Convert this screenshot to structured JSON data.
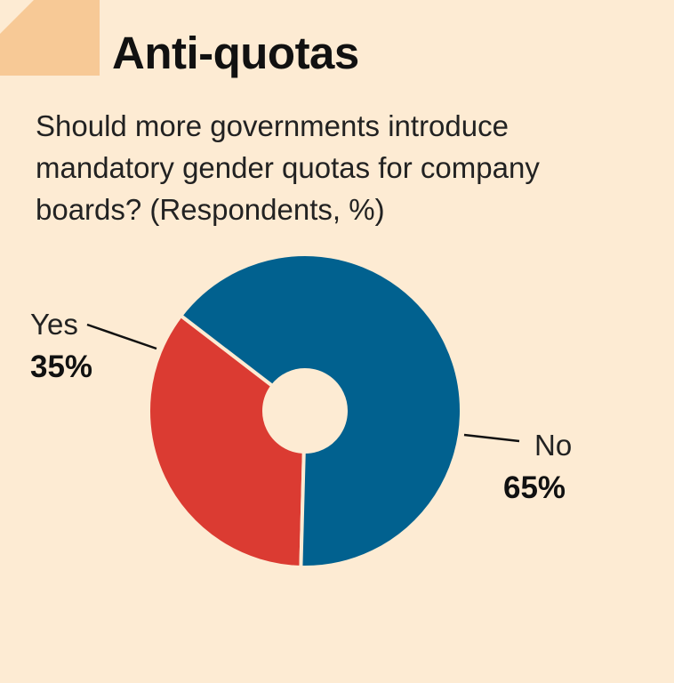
{
  "page": {
    "background": "#fdebd3",
    "tab_color": "#f7c996"
  },
  "header": {
    "title": "Anti-quotas",
    "subtitle": "Should more governments introduce mandatory gender quotas for company boards?  (Respondents, %)"
  },
  "chart_data": {
    "type": "pie",
    "donut": true,
    "slices": [
      {
        "name": "Yes",
        "label": "Yes",
        "value": 35,
        "value_label": "35%",
        "color": "#db3b32"
      },
      {
        "name": "No",
        "label": "No",
        "value": 65,
        "value_label": "65%",
        "color": "#01618f"
      }
    ]
  }
}
